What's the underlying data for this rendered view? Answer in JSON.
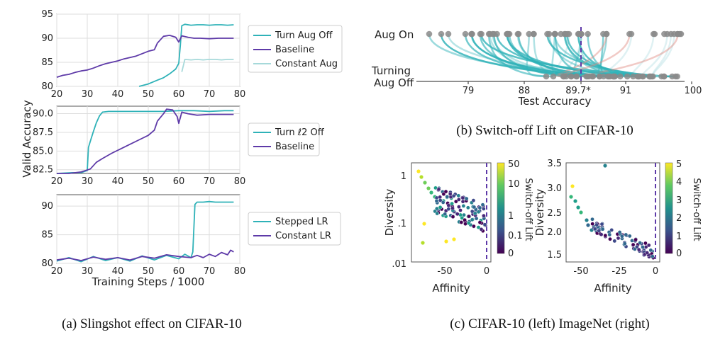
{
  "captions": {
    "a": "(a)  Slingshot effect on CIFAR-10",
    "b": "(b)  Switch-off Lift on CIFAR-10",
    "c": "(c)  CIFAR-10 (left) ImageNet (right)"
  },
  "chart_data": [
    {
      "id": "a-top",
      "type": "line",
      "xlabel": "",
      "ylabel": "Valid Accuracy",
      "xlim": [
        20,
        80
      ],
      "ylim": [
        80,
        95
      ],
      "xticks": [
        20,
        30,
        40,
        50,
        60,
        70,
        80
      ],
      "yticks": [
        80,
        85,
        90,
        95
      ],
      "grid": true,
      "legend_position": "right",
      "series": [
        {
          "name": "Turn Aug Off",
          "color": "#2fb2b8",
          "x": [
            47,
            50,
            53,
            55,
            57,
            58,
            59,
            60,
            60.5,
            61,
            62,
            64,
            66,
            68,
            70,
            72,
            74,
            76,
            78
          ],
          "y": [
            80.0,
            80.5,
            81.3,
            81.8,
            82.6,
            83.1,
            83.6,
            84.8,
            88.5,
            92.6,
            92.9,
            92.7,
            92.8,
            92.8,
            92.7,
            92.8,
            92.8,
            92.7,
            92.8
          ]
        },
        {
          "name": "Baseline",
          "color": "#5e3aa8",
          "x": [
            20,
            22,
            24,
            26,
            28,
            30,
            32,
            34,
            36,
            38,
            40,
            42,
            44,
            46,
            48,
            50,
            52,
            53,
            55,
            57,
            59,
            60,
            61,
            63,
            65,
            67,
            70,
            73,
            76,
            78
          ],
          "y": [
            81.9,
            82.3,
            82.5,
            82.9,
            83.2,
            83.4,
            83.8,
            84.3,
            84.7,
            85.0,
            85.3,
            85.7,
            86.0,
            86.3,
            86.8,
            87.3,
            87.6,
            89.0,
            90.4,
            90.6,
            90.2,
            89.2,
            90.5,
            90.2,
            90.0,
            90.0,
            89.9,
            90.0,
            90.0,
            90.0
          ]
        },
        {
          "name": "Constant Aug",
          "color": "#a6d9da",
          "x": [
            61,
            62,
            64,
            66,
            68,
            70,
            72,
            74,
            76,
            78
          ],
          "y": [
            83.0,
            85.6,
            85.5,
            85.6,
            85.5,
            85.6,
            85.6,
            85.5,
            85.6,
            85.6
          ]
        }
      ]
    },
    {
      "id": "a-mid",
      "type": "line",
      "xlabel": "",
      "ylabel": "",
      "xlim": [
        20,
        80
      ],
      "ylim": [
        82.0,
        91.0
      ],
      "xticks": [
        20,
        30,
        40,
        50,
        60,
        70,
        80
      ],
      "yticks": [
        82.5,
        85.0,
        87.5,
        90.0
      ],
      "grid": true,
      "legend_position": "right",
      "series": [
        {
          "name": "Turn ℓ2 Off",
          "color": "#2fb2b8",
          "x": [
            20,
            25,
            28,
            30,
            30.4,
            31,
            32,
            33,
            34,
            35,
            37,
            40,
            45,
            50,
            55,
            60,
            65,
            70,
            75,
            78
          ],
          "y": [
            82.0,
            82.1,
            82.1,
            82.4,
            85.5,
            86.3,
            87.6,
            88.8,
            89.7,
            90.2,
            90.3,
            90.3,
            90.3,
            90.3,
            90.3,
            90.4,
            90.4,
            90.3,
            90.4,
            90.4
          ]
        },
        {
          "name": "Baseline",
          "color": "#5e3aa8",
          "x": [
            20,
            24,
            28,
            31,
            33,
            35,
            38,
            41,
            44,
            47,
            50,
            52,
            53,
            55,
            56,
            58,
            59.5,
            60,
            61,
            63,
            66,
            70,
            74,
            78
          ],
          "y": [
            82.0,
            82.0,
            82.2,
            82.6,
            83.5,
            84.0,
            84.7,
            85.3,
            85.9,
            86.5,
            87.1,
            87.8,
            89.0,
            90.0,
            90.6,
            90.5,
            89.6,
            88.7,
            90.2,
            90.0,
            89.8,
            89.9,
            89.9,
            89.9
          ]
        }
      ]
    },
    {
      "id": "a-bot",
      "type": "line",
      "xlabel": "Training Steps / 1000",
      "ylabel": "",
      "xlim": [
        20,
        80
      ],
      "ylim": [
        80,
        92
      ],
      "xticks": [
        20,
        30,
        40,
        50,
        60,
        70,
        80
      ],
      "yticks": [
        80,
        85,
        90
      ],
      "grid": true,
      "legend_position": "right",
      "series": [
        {
          "name": "Stepped LR",
          "color": "#2fb2b8",
          "x": [
            20,
            24,
            28,
            32,
            36,
            40,
            44,
            48,
            52,
            56,
            60,
            62,
            64,
            64.6,
            65.3,
            66,
            68,
            70,
            72,
            74,
            76,
            78
          ],
          "y": [
            80.4,
            81.0,
            80.3,
            81.2,
            80.5,
            81.0,
            80.4,
            81.3,
            80.6,
            81.4,
            80.8,
            81.6,
            81.0,
            82.0,
            90.3,
            90.7,
            90.7,
            90.8,
            90.7,
            90.7,
            90.7,
            90.7
          ]
        },
        {
          "name": "Constant LR",
          "color": "#5e3aa8",
          "x": [
            20,
            24,
            28,
            32,
            36,
            40,
            44,
            48,
            52,
            56,
            60,
            64,
            66,
            68,
            70,
            72,
            74,
            76,
            77,
            78
          ],
          "y": [
            80.6,
            80.9,
            80.5,
            81.1,
            80.7,
            81.0,
            80.6,
            81.2,
            80.9,
            81.5,
            81.2,
            81.0,
            81.4,
            81.0,
            81.6,
            81.2,
            81.9,
            81.5,
            82.3,
            82.0
          ]
        }
      ]
    },
    {
      "id": "b",
      "type": "scatter",
      "xlabel": "Test Accuracy",
      "ylabel": "",
      "row_labels": [
        "Aug On",
        "Turning",
        "Aug Off"
      ],
      "xticks": [
        "79",
        "88",
        "89.7*",
        "91",
        "100"
      ],
      "reference_tick": "89.7*",
      "grid": false,
      "colors": {
        "point": "#8a8a8a",
        "lift": "#2fb2b8",
        "drop": "#e08a80",
        "reference": "#5e3aa8"
      }
    },
    {
      "id": "c-left",
      "type": "scatter",
      "xlabel": "Affinity",
      "ylabel": "Diversity",
      "colorbar_label": "Switch-off Lift",
      "colorbar_ticks": [
        "50",
        "10",
        "1",
        "0.1",
        "0"
      ],
      "xticks": [
        "-50",
        "0"
      ],
      "yticks": [
        "1",
        ".1",
        ".01"
      ],
      "log_y": true,
      "ylim": [
        0.01,
        2
      ]
    },
    {
      "id": "c-right",
      "type": "scatter",
      "xlabel": "Affinity",
      "ylabel": "Diversity",
      "colorbar_label": "Switch-off Lift",
      "colorbar_ticks": [
        "5",
        "4",
        "3",
        "2",
        "1",
        "0"
      ],
      "xticks": [
        "-50",
        "-25",
        "0"
      ],
      "yticks": [
        "3.5",
        "3.0",
        "2.5",
        "2.0",
        "1.5"
      ],
      "ylim": [
        1.2,
        3.6
      ]
    }
  ]
}
